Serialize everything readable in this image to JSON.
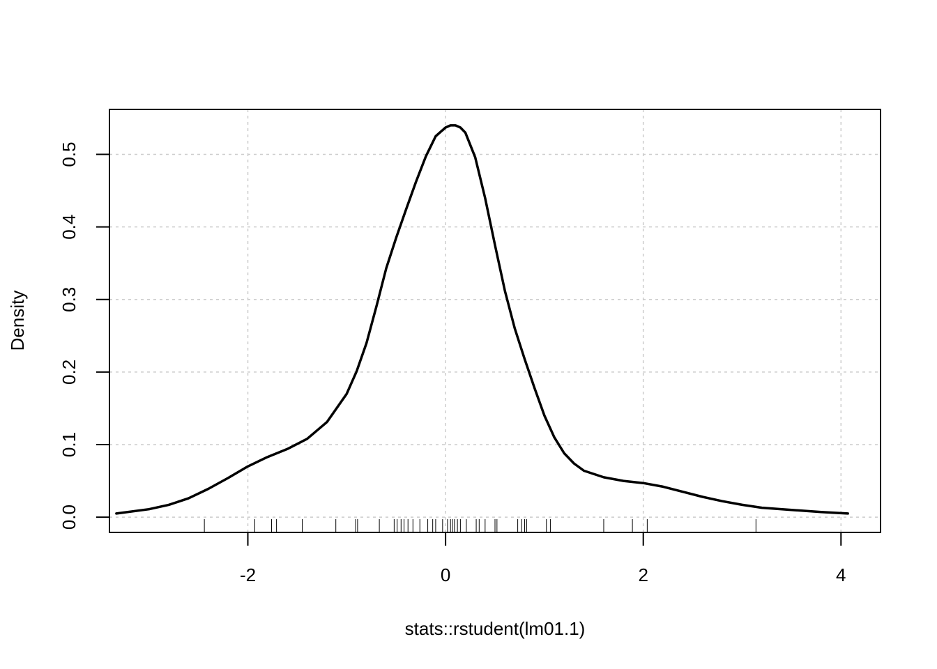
{
  "chart_data": {
    "type": "line",
    "title": "",
    "xlabel": "stats::rstudent(lm01.1)",
    "ylabel": "Density",
    "xlim": [
      -3.4,
      4.4
    ],
    "ylim": [
      -0.021,
      0.562
    ],
    "x_ticks": [
      -2,
      0,
      2,
      4
    ],
    "x_tick_labels": [
      "-2",
      "0",
      "2",
      "4"
    ],
    "y_ticks": [
      0.0,
      0.1,
      0.2,
      0.3,
      0.4,
      0.5
    ],
    "y_tick_labels": [
      "0.0",
      "0.1",
      "0.2",
      "0.3",
      "0.4",
      "0.5"
    ],
    "grid": true,
    "grid_color": "#cccccc",
    "line_color": "#000000",
    "series": [
      {
        "x": [
          -3.33,
          -3.0,
          -2.8,
          -2.6,
          -2.4,
          -2.2,
          -2.0,
          -1.8,
          -1.6,
          -1.4,
          -1.2,
          -1.0,
          -0.9,
          -0.8,
          -0.7,
          -0.6,
          -0.5,
          -0.4,
          -0.3,
          -0.2,
          -0.1,
          0.0,
          0.05,
          0.1,
          0.15,
          0.2,
          0.3,
          0.4,
          0.5,
          0.6,
          0.7,
          0.8,
          0.9,
          1.0,
          1.1,
          1.2,
          1.3,
          1.4,
          1.6,
          1.8,
          2.0,
          2.2,
          2.4,
          2.6,
          2.8,
          3.0,
          3.2,
          3.5,
          3.8,
          4.07
        ],
        "y": [
          0.005,
          0.011,
          0.017,
          0.026,
          0.039,
          0.054,
          0.07,
          0.083,
          0.094,
          0.108,
          0.131,
          0.17,
          0.201,
          0.24,
          0.29,
          0.343,
          0.385,
          0.424,
          0.462,
          0.497,
          0.525,
          0.537,
          0.54,
          0.54,
          0.537,
          0.53,
          0.496,
          0.44,
          0.375,
          0.312,
          0.26,
          0.218,
          0.178,
          0.14,
          0.11,
          0.088,
          0.074,
          0.064,
          0.055,
          0.05,
          0.047,
          0.042,
          0.035,
          0.028,
          0.022,
          0.017,
          0.013,
          0.01,
          0.007,
          0.005
        ]
      }
    ],
    "rug": [
      -2.44,
      -1.93,
      -1.76,
      -1.71,
      -1.45,
      -1.11,
      -0.91,
      -0.89,
      -0.67,
      -0.52,
      -0.49,
      -0.45,
      -0.42,
      -0.38,
      -0.33,
      -0.26,
      -0.18,
      -0.13,
      -0.1,
      -0.03,
      0.02,
      0.05,
      0.07,
      0.09,
      0.12,
      0.15,
      0.21,
      0.31,
      0.34,
      0.4,
      0.5,
      0.52,
      0.73,
      0.77,
      0.8,
      0.82,
      1.02,
      1.06,
      1.6,
      1.89,
      2.04,
      3.14
    ]
  }
}
